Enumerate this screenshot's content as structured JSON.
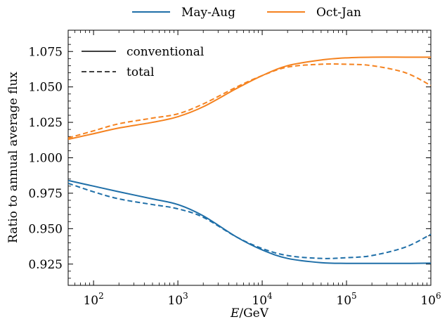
{
  "chart_data": {
    "type": "line",
    "xscale": "log",
    "xlabel_italic": "E",
    "xlabel_rest": "/GeV",
    "ylabel": "Ratio to annual average flux",
    "xlim": [
      50,
      1000000
    ],
    "ylim": [
      0.91,
      1.09
    ],
    "yticks": [
      "0.925",
      "0.950",
      "0.975",
      "1.000",
      "1.025",
      "1.050",
      "1.075"
    ],
    "xticks": [
      {
        "base": "10",
        "exp": "2",
        "value": 100
      },
      {
        "base": "10",
        "exp": "3",
        "value": 1000
      },
      {
        "base": "10",
        "exp": "4",
        "value": 10000
      },
      {
        "base": "10",
        "exp": "5",
        "value": 100000
      },
      {
        "base": "10",
        "exp": "6",
        "value": 1000000
      }
    ],
    "legend_top": {
      "placement": "above-plot",
      "entries": [
        {
          "label": "May-Aug",
          "color": "#1f6fa8"
        },
        {
          "label": "Oct-Jan",
          "color": "#f5821f"
        }
      ]
    },
    "legend_style": {
      "placement": "top-left",
      "entries": [
        {
          "label": "conventional",
          "linestyle": "solid"
        },
        {
          "label": "total",
          "linestyle": "dashed"
        }
      ]
    },
    "x": [
      50,
      100,
      200,
      500,
      1000,
      2000,
      5000,
      10000,
      20000,
      50000,
      100000,
      200000,
      500000,
      1000000
    ],
    "series": [
      {
        "name": "May-Aug",
        "linestyle": "solid",
        "color": "#1f6fa8",
        "values": [
          0.984,
          0.98,
          0.976,
          0.971,
          0.967,
          0.959,
          0.944,
          0.935,
          0.929,
          0.926,
          0.9255,
          0.9255,
          0.9255,
          0.9257
        ]
      },
      {
        "name": "May-Aug",
        "linestyle": "dashed",
        "color": "#1f6fa8",
        "values": [
          0.982,
          0.976,
          0.971,
          0.967,
          0.964,
          0.958,
          0.944,
          0.936,
          0.931,
          0.929,
          0.9295,
          0.931,
          0.937,
          0.946
        ]
      },
      {
        "name": "Oct-Jan",
        "linestyle": "solid",
        "color": "#f5821f",
        "values": [
          1.013,
          1.017,
          1.021,
          1.025,
          1.029,
          1.036,
          1.049,
          1.058,
          1.065,
          1.069,
          1.0705,
          1.071,
          1.071,
          1.071
        ]
      },
      {
        "name": "Oct-Jan",
        "linestyle": "dashed",
        "color": "#f5821f",
        "values": [
          1.014,
          1.019,
          1.024,
          1.028,
          1.031,
          1.038,
          1.05,
          1.058,
          1.064,
          1.066,
          1.066,
          1.065,
          1.06,
          1.051
        ]
      }
    ]
  }
}
